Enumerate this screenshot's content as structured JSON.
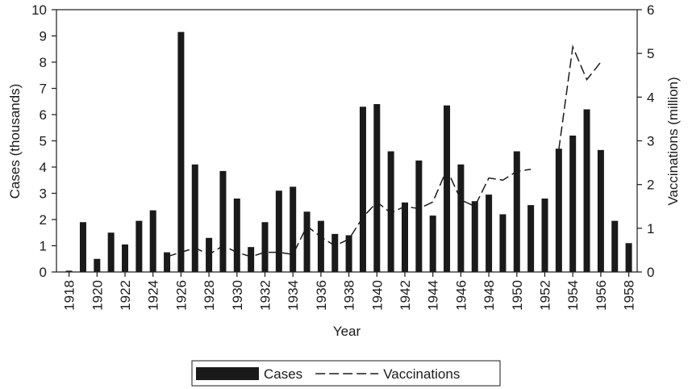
{
  "chart_data": {
    "type": "bar-line",
    "xlabel": "Year",
    "ylabel": "Cases (thousands)",
    "y2label": "Vaccinations (million)",
    "x": [
      1918,
      1919,
      1920,
      1921,
      1922,
      1923,
      1924,
      1925,
      1926,
      1927,
      1928,
      1929,
      1930,
      1931,
      1932,
      1933,
      1934,
      1935,
      1936,
      1937,
      1938,
      1939,
      1940,
      1941,
      1942,
      1943,
      1944,
      1945,
      1946,
      1947,
      1948,
      1949,
      1950,
      1951,
      1952,
      1953,
      1954,
      1955,
      1956,
      1957,
      1958
    ],
    "series": [
      {
        "name": "Cases",
        "type": "bar",
        "color": "#1a1a1a",
        "values": [
          0.05,
          1.9,
          0.5,
          1.5,
          1.05,
          1.95,
          2.35,
          0.75,
          9.15,
          4.1,
          1.3,
          3.85,
          2.8,
          0.95,
          1.9,
          3.1,
          3.25,
          2.3,
          1.95,
          1.45,
          1.4,
          6.3,
          6.4,
          4.6,
          2.65,
          4.25,
          2.15,
          6.35,
          4.1,
          2.7,
          2.95,
          2.2,
          4.6,
          2.55,
          2.8,
          4.7,
          5.2,
          6.2,
          4.65,
          1.95,
          1.1
        ]
      },
      {
        "name": "Vaccinations",
        "type": "line",
        "axis": "y2",
        "color": "#1a1a1a",
        "linestyle": "dashed",
        "values": [
          null,
          null,
          null,
          null,
          null,
          null,
          null,
          0.35,
          0.45,
          0.55,
          0.4,
          0.6,
          0.45,
          0.35,
          0.45,
          0.45,
          0.4,
          1.05,
          0.8,
          0.6,
          0.75,
          1.25,
          1.6,
          1.35,
          1.5,
          1.45,
          1.6,
          2.35,
          1.65,
          1.5,
          2.15,
          2.1,
          2.3,
          2.35,
          null,
          2.8,
          5.15,
          4.4,
          4.8,
          null,
          null
        ]
      }
    ],
    "xlim": [
      1917.1,
      1958.6
    ],
    "xticks": [
      1918,
      1920,
      1922,
      1924,
      1926,
      1928,
      1930,
      1932,
      1934,
      1936,
      1938,
      1940,
      1942,
      1944,
      1946,
      1948,
      1950,
      1952,
      1954,
      1956,
      1958
    ],
    "ylim": [
      0,
      10
    ],
    "yticks": [
      0,
      1,
      2,
      3,
      4,
      5,
      6,
      7,
      8,
      9,
      10
    ],
    "y2lim": [
      0,
      6
    ],
    "y2ticks": [
      0,
      1,
      2,
      3,
      4,
      5,
      6
    ],
    "legend": "bottom"
  }
}
